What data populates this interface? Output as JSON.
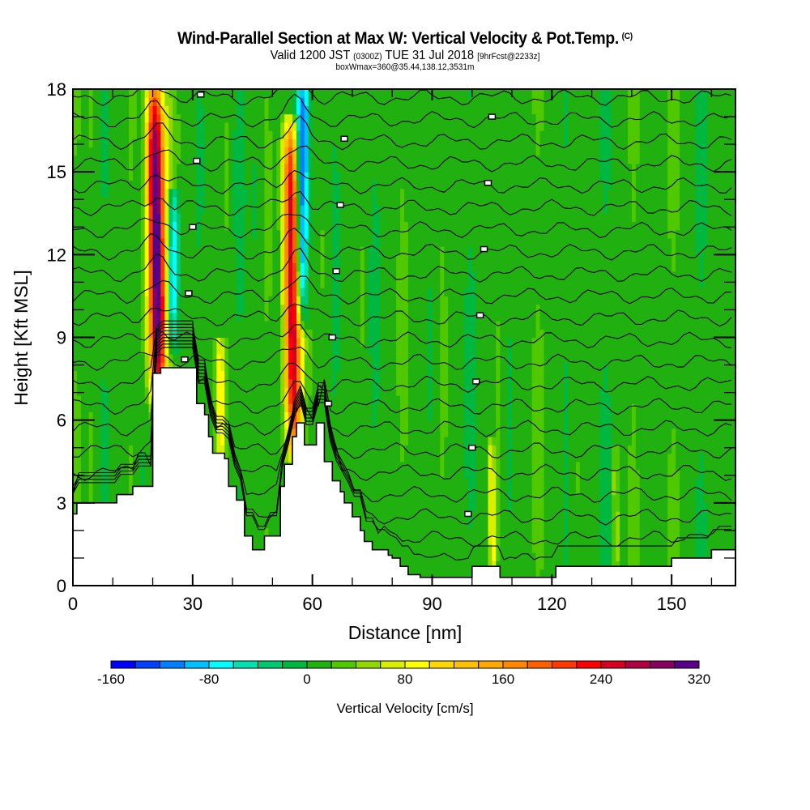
{
  "header": {
    "title": "Wind-Parallel Section at Max W: Vertical Velocity & Pot.Temp.",
    "copyright": "(C)",
    "valid_prefix": "Valid 1200 JST",
    "valid_utc": "(0300Z)",
    "valid_date": "TUE 31 Jul 2018",
    "forecast": "[9hrFcst@2233z]",
    "box_info": "boxWmax=360@35.44,138.12,3531m"
  },
  "chart_data": {
    "type": "heatmap",
    "title": "Wind-Parallel Section at Max W: Vertical Velocity & Pot.Temp.",
    "xlabel": "Distance [nm]",
    "ylabel": "Height [Kft MSL]",
    "xlim": [
      0,
      166
    ],
    "ylim": [
      0,
      18
    ],
    "xticks": [
      0,
      30,
      60,
      90,
      120,
      150
    ],
    "yticks": [
      0,
      3,
      6,
      9,
      12,
      15,
      18
    ],
    "x_minor_step": 10,
    "y_minor_step": 1,
    "colorbar": {
      "label": "Vertical Velocity [cm/s]",
      "min": -160,
      "max": 320,
      "step": 20,
      "tick_labels": [
        "-160",
        "-80",
        "0",
        "80",
        "160",
        "240",
        "320"
      ],
      "colors": [
        "#0000ff",
        "#0040ff",
        "#0080ff",
        "#00c0ff",
        "#00ffff",
        "#00e0b0",
        "#00c870",
        "#00b840",
        "#20b010",
        "#50c800",
        "#90d800",
        "#d8f000",
        "#ffff00",
        "#ffd800",
        "#ffc000",
        "#ffa800",
        "#ff8800",
        "#ff6000",
        "#ff3800",
        "#ff0000",
        "#d80020",
        "#b00040",
        "#880060",
        "#580088"
      ]
    },
    "background_value": 10,
    "features": [
      {
        "name": "updraft-1",
        "x": 21,
        "z_bottom": 7,
        "z_top": 18,
        "peak": 320,
        "width": 2.2
      },
      {
        "name": "downdraft-1",
        "x": 25,
        "z_bottom": 9,
        "z_top": 14,
        "peak": -100,
        "width": 1.5
      },
      {
        "name": "updraft-2",
        "x": 55,
        "z_bottom": 5,
        "z_top": 16.5,
        "peak": 260,
        "width": 2.0
      },
      {
        "name": "downdraft-2",
        "x": 57.5,
        "z_bottom": 10,
        "z_top": 18,
        "peak": -160,
        "width": 1.6
      },
      {
        "name": "updraft-3",
        "x": 37,
        "z_bottom": 5,
        "z_top": 8.5,
        "peak": 90,
        "width": 1.2
      },
      {
        "name": "updraft-4",
        "x": 105,
        "z_bottom": 0.5,
        "z_top": 4.8,
        "peak": 90,
        "width": 0.8
      },
      {
        "name": "updraft-5",
        "x": 136,
        "z_bottom": 1,
        "z_top": 4.5,
        "peak": 50,
        "width": 0.8
      }
    ],
    "terrain": {
      "x": [
        0,
        1,
        6,
        11,
        15,
        20,
        22,
        23,
        27,
        30,
        31,
        33,
        34,
        35,
        36,
        38,
        39,
        41,
        43,
        45,
        47,
        48,
        52,
        53,
        55,
        56,
        58,
        59,
        61,
        62,
        63,
        65,
        67,
        68,
        70,
        72,
        73,
        75,
        79,
        80,
        82,
        84,
        86,
        87,
        90,
        97,
        100,
        107,
        113,
        119,
        121,
        125,
        130,
        137,
        142,
        150,
        160,
        166
      ],
      "z": [
        2.6,
        3.0,
        3.0,
        3.3,
        3.6,
        7.7,
        7.9,
        7.9,
        7.9,
        7.9,
        6.6,
        6.2,
        5.4,
        4.8,
        4.8,
        4.6,
        3.6,
        3.1,
        1.8,
        1.3,
        1.3,
        1.8,
        3.6,
        4.4,
        5.4,
        5.9,
        5.1,
        5.1,
        5.9,
        5.9,
        4.5,
        3.8,
        3.4,
        3.0,
        2.5,
        2.0,
        1.6,
        1.3,
        1.1,
        1.0,
        0.7,
        0.4,
        0.4,
        0.3,
        0.3,
        0.3,
        0.7,
        0.3,
        0.3,
        0.3,
        0.7,
        0.7,
        0.7,
        0.7,
        0.7,
        1.0,
        1.3,
        1.3
      ]
    },
    "theta_contour_count": 22
  }
}
